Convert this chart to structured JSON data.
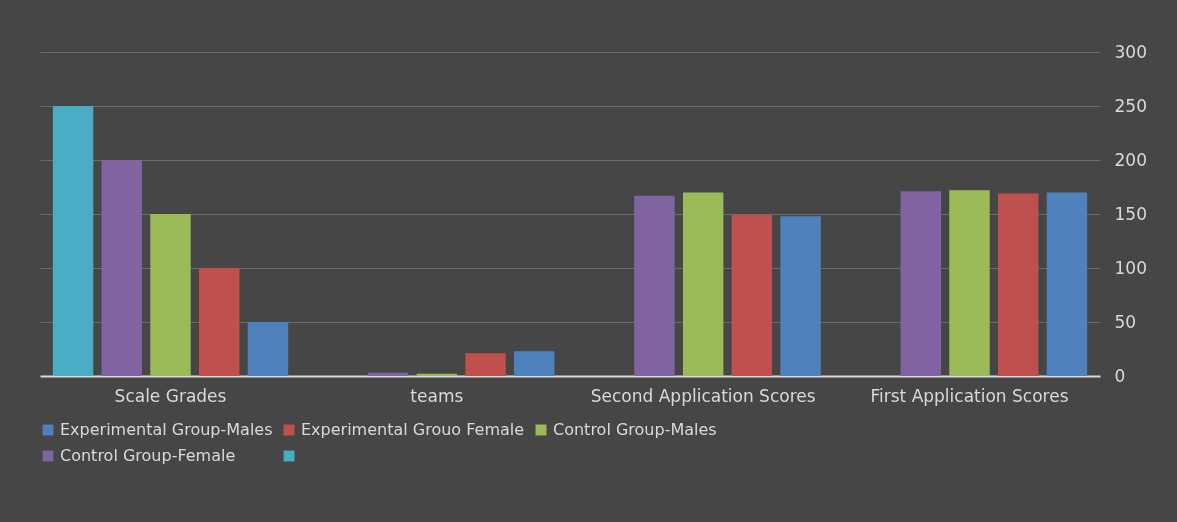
{
  "chart_data": {
    "type": "bar",
    "categories": [
      "Scale Grades",
      "teams",
      "Second Application Scores",
      "First Application Scores"
    ],
    "series": [
      {
        "name": "Experimental Group-Males",
        "color": "#4f81bd",
        "values": [
          50,
          23,
          148,
          170
        ]
      },
      {
        "name": "Experimental Grouo Female",
        "color": "#c0504d",
        "values": [
          100,
          21,
          149,
          169
        ]
      },
      {
        "name": "Control Group-Males",
        "color": "#9bbb59",
        "values": [
          150,
          2,
          170,
          172
        ]
      },
      {
        "name": "Control Group-Female",
        "color": "#8064a2",
        "values": [
          200,
          3,
          167,
          171
        ]
      },
      {
        "color": "#4bacc6",
        "values": [
          250,
          null,
          null,
          null
        ]
      }
    ],
    "ylim": [
      0,
      300
    ],
    "yticks": [
      0,
      50,
      100,
      150,
      200,
      250,
      300
    ],
    "grid": "y",
    "legend": "bottom"
  }
}
